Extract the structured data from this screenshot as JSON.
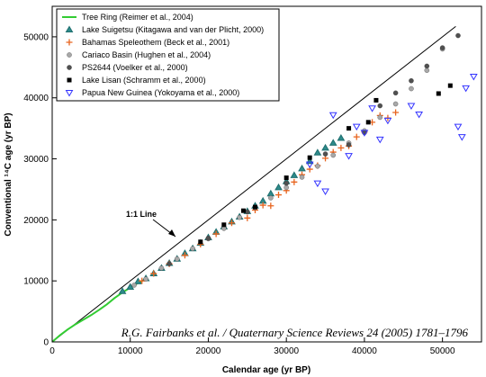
{
  "chart_data": {
    "type": "scatter",
    "xlabel": "Calendar age (yr BP)",
    "ylabel": "Conventional ¹⁴C age (yr BP)",
    "xlim": [
      0,
      55000
    ],
    "ylim": [
      0,
      55000
    ],
    "x_ticks": [
      0,
      10000,
      20000,
      30000,
      40000,
      50000
    ],
    "y_ticks": [
      0,
      10000,
      20000,
      30000,
      40000,
      50000
    ],
    "grid": false,
    "legend_position": "top-left",
    "annotation": "1:1 Line",
    "citation": "R.G. Fairbanks et al. / Quaternary Science Reviews 24 (2005) 1781–1796",
    "series": [
      {
        "name": "Tree Ring (Reimer et al., 2004)",
        "marker": "line",
        "color": "#33cc33",
        "points": [
          [
            0,
            0
          ],
          [
            1000,
            1100
          ],
          [
            2000,
            2050
          ],
          [
            3000,
            2900
          ],
          [
            4000,
            3650
          ],
          [
            5000,
            4400
          ],
          [
            6000,
            5250
          ],
          [
            7000,
            6150
          ],
          [
            8000,
            7200
          ],
          [
            9000,
            8100
          ],
          [
            10000,
            8900
          ],
          [
            11000,
            9650
          ],
          [
            12000,
            10300
          ]
        ]
      },
      {
        "name": "Lake Suigetsu (Kitagawa and van der Plicht, 2000)",
        "marker": "triangle-up",
        "color": "#1f6f6f",
        "points": [
          [
            9000,
            8300
          ],
          [
            10000,
            9000
          ],
          [
            11000,
            9900
          ],
          [
            12000,
            10400
          ],
          [
            13000,
            11200
          ],
          [
            14000,
            12100
          ],
          [
            15000,
            12900
          ],
          [
            16000,
            13600
          ],
          [
            17000,
            14500
          ],
          [
            18000,
            15300
          ],
          [
            19000,
            16200
          ],
          [
            20000,
            17100
          ],
          [
            21000,
            18000
          ],
          [
            22000,
            18900
          ],
          [
            23000,
            19700
          ],
          [
            24000,
            20500
          ],
          [
            25000,
            21400
          ],
          [
            26000,
            22300
          ],
          [
            27000,
            23100
          ],
          [
            28000,
            24300
          ],
          [
            29000,
            25300
          ],
          [
            30000,
            26300
          ],
          [
            31000,
            27300
          ],
          [
            32000,
            28400
          ],
          [
            33000,
            29600
          ],
          [
            34000,
            31000
          ],
          [
            35000,
            31800
          ],
          [
            36000,
            32600
          ],
          [
            37000,
            33400
          ]
        ]
      },
      {
        "name": "Bahamas Speleothem (Beck et al., 2001)",
        "marker": "plus",
        "color": "#e8641e",
        "points": [
          [
            11500,
            10000
          ],
          [
            13000,
            11200
          ],
          [
            15000,
            12800
          ],
          [
            17000,
            14200
          ],
          [
            19000,
            16000
          ],
          [
            21000,
            17700
          ],
          [
            23000,
            19500
          ],
          [
            25000,
            20300
          ],
          [
            26000,
            21600
          ],
          [
            27000,
            22400
          ],
          [
            28000,
            22300
          ],
          [
            29000,
            24100
          ],
          [
            30000,
            24800
          ],
          [
            31000,
            26200
          ],
          [
            32000,
            27400
          ],
          [
            33000,
            28300
          ],
          [
            34000,
            28900
          ],
          [
            35000,
            30100
          ],
          [
            36000,
            31100
          ],
          [
            37000,
            31800
          ],
          [
            38000,
            32100
          ],
          [
            39000,
            33600
          ],
          [
            40000,
            34400
          ],
          [
            41000,
            36000
          ],
          [
            42000,
            37100
          ],
          [
            43000,
            36700
          ],
          [
            44000,
            37600
          ]
        ]
      },
      {
        "name": "Cariaco Basin (Hughen et al., 2004)",
        "marker": "circle",
        "color": "#a8a8a8",
        "points": [
          [
            10500,
            9300
          ],
          [
            12000,
            10300
          ],
          [
            14000,
            12100
          ],
          [
            16000,
            13600
          ],
          [
            18000,
            15300
          ],
          [
            20000,
            16900
          ],
          [
            22000,
            18600
          ],
          [
            24000,
            20400
          ],
          [
            26000,
            22000
          ],
          [
            28000,
            23600
          ],
          [
            30000,
            25300
          ],
          [
            32000,
            27000
          ],
          [
            34000,
            28800
          ],
          [
            36000,
            30600
          ],
          [
            38000,
            32600
          ],
          [
            40000,
            34600
          ],
          [
            42000,
            36800
          ],
          [
            44000,
            39000
          ],
          [
            46000,
            41500
          ],
          [
            48000,
            44500
          ],
          [
            50000,
            48000
          ]
        ]
      },
      {
        "name": "PS2644 (Voelker et al., 2000)",
        "marker": "circle",
        "color": "#505050",
        "points": [
          [
            15000,
            12800
          ],
          [
            20000,
            17000
          ],
          [
            25000,
            21300
          ],
          [
            30000,
            26000
          ],
          [
            35000,
            30800
          ],
          [
            38000,
            32300
          ],
          [
            40000,
            34300
          ],
          [
            42000,
            38700
          ],
          [
            44000,
            40800
          ],
          [
            46000,
            42800
          ],
          [
            48000,
            45200
          ],
          [
            50000,
            48200
          ],
          [
            52000,
            50200
          ]
        ]
      },
      {
        "name": "Lake Lisan (Schramm et al., 2000)",
        "marker": "square",
        "color": "#000000",
        "points": [
          [
            19000,
            16400
          ],
          [
            22000,
            19200
          ],
          [
            24500,
            21500
          ],
          [
            26000,
            22100
          ],
          [
            30000,
            26900
          ],
          [
            33000,
            30200
          ],
          [
            38000,
            35000
          ],
          [
            40500,
            36000
          ],
          [
            41500,
            39600
          ],
          [
            49500,
            40700
          ],
          [
            51000,
            42000
          ]
        ]
      },
      {
        "name": "Papua New Guinea (Yokoyama et al., 2000)",
        "marker": "triangle-down",
        "color": "#3333ff",
        "points": [
          [
            33000,
            29100
          ],
          [
            34000,
            26000
          ],
          [
            35000,
            24700
          ],
          [
            36000,
            37200
          ],
          [
            38000,
            30500
          ],
          [
            39000,
            35300
          ],
          [
            40000,
            34300
          ],
          [
            41000,
            38300
          ],
          [
            42000,
            33200
          ],
          [
            43000,
            36300
          ],
          [
            46000,
            38700
          ],
          [
            47000,
            37300
          ],
          [
            52000,
            35300
          ],
          [
            52500,
            33600
          ],
          [
            53000,
            41600
          ],
          [
            54000,
            43500
          ]
        ]
      }
    ]
  }
}
